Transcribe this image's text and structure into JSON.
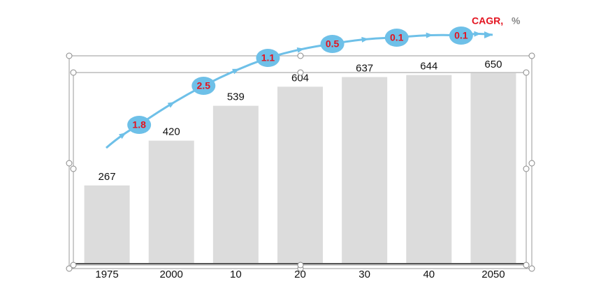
{
  "chart_data": {
    "type": "bar",
    "categories": [
      "1975",
      "2000",
      "10",
      "20",
      "30",
      "40",
      "2050"
    ],
    "values": [
      267,
      420,
      539,
      604,
      637,
      644,
      650
    ],
    "color": "#dcdcdc",
    "cagr_label": "CAGR,",
    "cagr_unit": "%",
    "cagr_values": [
      1.8,
      2.5,
      1.1,
      0.5,
      0.1,
      0.1
    ],
    "cagr_color": "#6ec0e8"
  }
}
